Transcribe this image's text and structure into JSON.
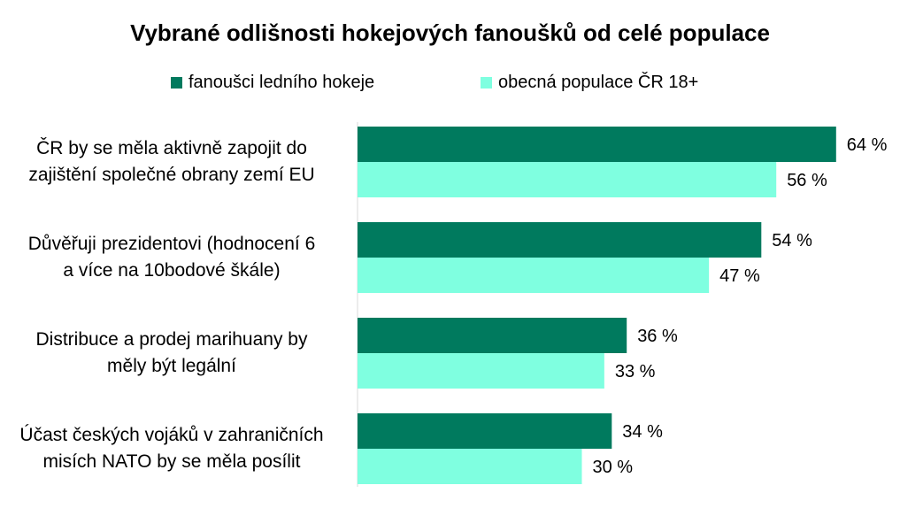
{
  "chart_data": {
    "type": "bar",
    "orientation": "horizontal",
    "title": "Vybrané odlišnosti hokejových fanoušků od celé populace",
    "categories": [
      [
        "ČR by se měla aktivně zapojit do",
        "zajištění společné obrany zemí EU"
      ],
      [
        "Důvěřuji prezidentovi (hodnocení 6",
        "a více na 10bodové škále)"
      ],
      [
        "Distribuce a prodej marihuany by",
        "měly být legální"
      ],
      [
        "Účast českých vojáků v zahraničních",
        "misích NATO by se měla posílit"
      ]
    ],
    "series": [
      {
        "name": "fanoušci ledního hokeje",
        "color": "#007A5E",
        "values": [
          64,
          54,
          36,
          34
        ],
        "labels": [
          "64 %",
          "54 %",
          "36 %",
          "34 %"
        ]
      },
      {
        "name": "obecná populace ČR 18+",
        "color": "#7FFFE0",
        "values": [
          56,
          47,
          33,
          30
        ],
        "labels": [
          "56 %",
          "47 %",
          "33 %",
          "30 %"
        ]
      }
    ],
    "xlim": [
      0,
      70
    ],
    "legend": "top",
    "grid": false
  }
}
